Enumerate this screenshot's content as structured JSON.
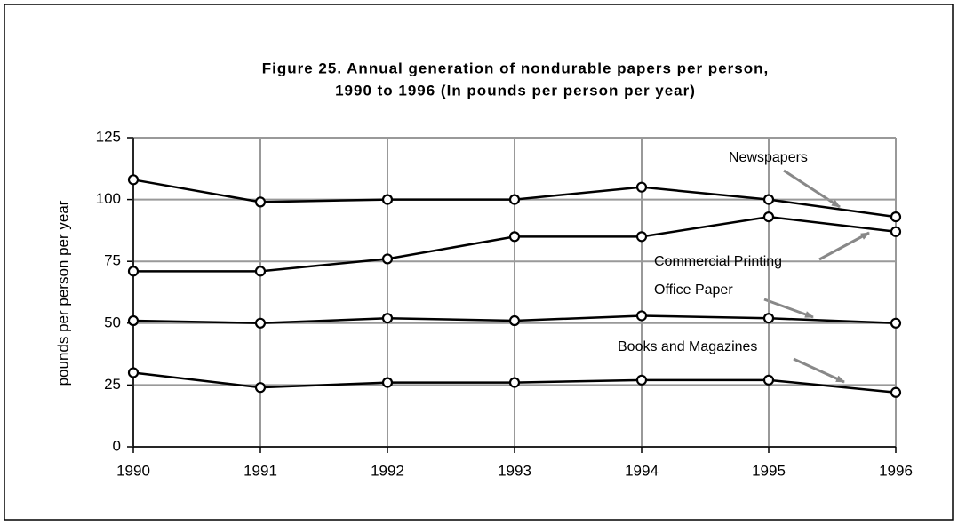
{
  "chart_data": {
    "type": "line",
    "title": [
      "Figure 25. Annual generation of nondurable papers per person,",
      "1990 to 1996 (In pounds per person per year)"
    ],
    "ylabel": "pounds per person per year",
    "x": [
      1990,
      1991,
      1992,
      1993,
      1994,
      1995,
      1996
    ],
    "xlim": [
      1990,
      1996
    ],
    "xticks": [
      1990,
      1991,
      1992,
      1993,
      1994,
      1995,
      1996
    ],
    "ylim": [
      0,
      125
    ],
    "yticks": [
      0,
      25,
      50,
      75,
      100,
      125
    ],
    "grid": true,
    "series": [
      {
        "name": "Newspapers",
        "color": "#000000",
        "values": [
          108,
          99,
          100,
          100,
          105,
          100,
          93
        ]
      },
      {
        "name": "Commercial Printing",
        "color": "#000000",
        "values": [
          71,
          71,
          76,
          85,
          85,
          93,
          87
        ]
      },
      {
        "name": "Office Paper",
        "color": "#000000",
        "values": [
          51,
          50,
          52,
          51,
          53,
          52,
          50
        ]
      },
      {
        "name": "Books and Magazines",
        "color": "#000000",
        "values": [
          30,
          24,
          26,
          26,
          27,
          27,
          22
        ]
      }
    ]
  }
}
